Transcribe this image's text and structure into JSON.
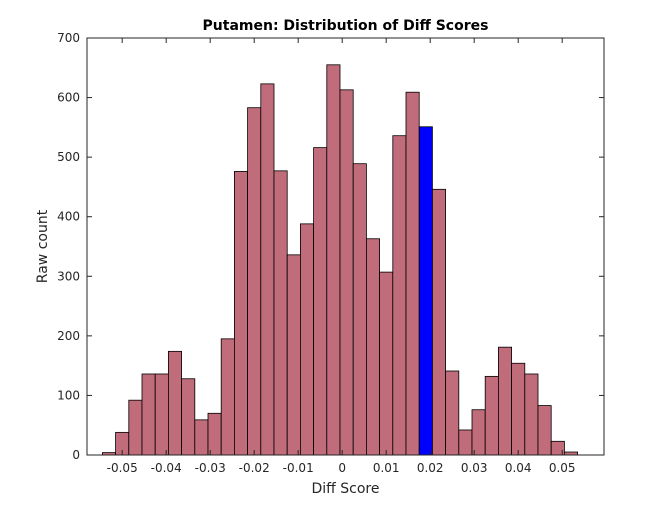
{
  "chart_data": {
    "type": "bar",
    "subtype": "histogram",
    "title": "Putamen: Distribution of Diff Scores",
    "xlabel": "Diff Score",
    "ylabel": "Raw count",
    "xlim": [
      -0.058,
      0.0595
    ],
    "ylim": [
      0,
      700
    ],
    "bin_start": -0.0545,
    "bin_width": 0.003,
    "xticks": [
      -0.05,
      -0.04,
      -0.03,
      -0.02,
      -0.01,
      0,
      0.01,
      0.02,
      0.03,
      0.04,
      0.05
    ],
    "xtick_labels": [
      "-0.05",
      "-0.04",
      "-0.03",
      "-0.02",
      "-0.01",
      "0",
      "0.01",
      "0.02",
      "0.03",
      "0.04",
      "0.05"
    ],
    "yticks": [
      0,
      100,
      200,
      300,
      400,
      500,
      600,
      700
    ],
    "ytick_labels": [
      "0",
      "100",
      "200",
      "300",
      "400",
      "500",
      "600",
      "700"
    ],
    "values": [
      4,
      38,
      92,
      136,
      136,
      174,
      128,
      59,
      70,
      195,
      476,
      583,
      623,
      477,
      336,
      388,
      516,
      655,
      613,
      489,
      363,
      307,
      536,
      609,
      551,
      446,
      141,
      42,
      76,
      132,
      181,
      154,
      136,
      83,
      23,
      5
    ],
    "highlight_index": 24,
    "colors": {
      "bar": "#c06c7a",
      "highlight": "#0000ff",
      "edge": "#000000",
      "axis": "#262626"
    },
    "grid": false,
    "box": true
  }
}
